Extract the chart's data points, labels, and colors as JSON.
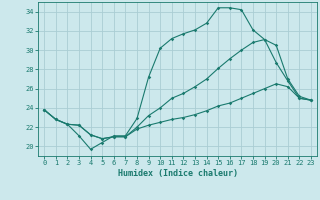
{
  "xlabel": "Humidex (Indice chaleur)",
  "background_color": "#cce8ec",
  "grid_color": "#aacdd4",
  "line_color": "#1a7a6e",
  "xlim": [
    -0.5,
    23.5
  ],
  "ylim": [
    19,
    35
  ],
  "yticks": [
    20,
    22,
    24,
    26,
    28,
    30,
    32,
    34
  ],
  "xticks": [
    0,
    1,
    2,
    3,
    4,
    5,
    6,
    7,
    8,
    9,
    10,
    11,
    12,
    13,
    14,
    15,
    16,
    17,
    18,
    19,
    20,
    21,
    22,
    23
  ],
  "line1_x": [
    0,
    1,
    2,
    3,
    4,
    5,
    6,
    7,
    8,
    9,
    10,
    11,
    12,
    13,
    14,
    15,
    16,
    17,
    18,
    19,
    20,
    21,
    22,
    23
  ],
  "line1_y": [
    23.8,
    22.8,
    22.3,
    21.1,
    19.7,
    20.4,
    21.1,
    21.1,
    22.9,
    27.2,
    30.2,
    31.2,
    31.7,
    32.1,
    32.8,
    34.4,
    34.4,
    34.2,
    32.1,
    31.1,
    28.7,
    26.8,
    25.0,
    24.8
  ],
  "line2_x": [
    0,
    1,
    2,
    3,
    4,
    5,
    6,
    7,
    8,
    9,
    10,
    11,
    12,
    13,
    14,
    15,
    16,
    17,
    18,
    19,
    20,
    21,
    22,
    23
  ],
  "line2_y": [
    23.8,
    22.8,
    22.3,
    22.2,
    21.2,
    20.8,
    21.0,
    21.0,
    22.0,
    23.2,
    24.0,
    25.0,
    25.5,
    26.2,
    27.0,
    28.1,
    29.1,
    30.0,
    30.8,
    31.1,
    30.5,
    27.0,
    25.2,
    24.8
  ],
  "line3_x": [
    0,
    1,
    2,
    3,
    4,
    5,
    6,
    7,
    8,
    9,
    10,
    11,
    12,
    13,
    14,
    15,
    16,
    17,
    18,
    19,
    20,
    21,
    22,
    23
  ],
  "line3_y": [
    23.8,
    22.8,
    22.3,
    22.2,
    21.2,
    20.8,
    21.0,
    21.0,
    21.8,
    22.2,
    22.5,
    22.8,
    23.0,
    23.3,
    23.7,
    24.2,
    24.5,
    25.0,
    25.5,
    26.0,
    26.5,
    26.2,
    25.0,
    24.8
  ],
  "tick_fontsize": 5.0,
  "xlabel_fontsize": 6.0,
  "marker_size": 1.8,
  "line_width": 0.8
}
